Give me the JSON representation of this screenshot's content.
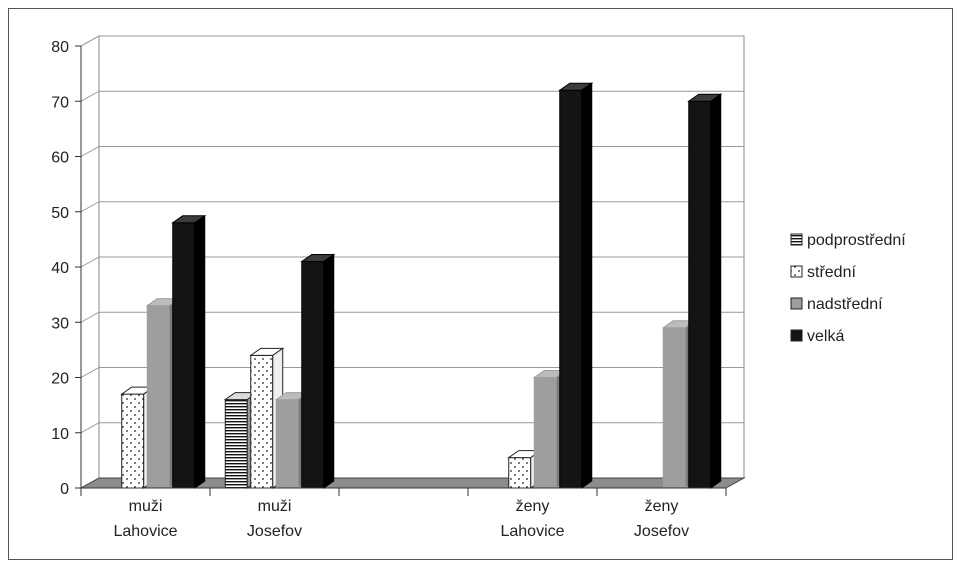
{
  "chart_data": {
    "type": "bar",
    "title": "",
    "xlabel": "",
    "ylabel": "",
    "ylim": [
      0,
      80
    ],
    "yticks": [
      0,
      10,
      20,
      30,
      40,
      50,
      60,
      70,
      80
    ],
    "grid": true,
    "legend_position": "right",
    "categories": [
      [
        "muži",
        "Lahovice"
      ],
      [
        "muži",
        "Josefov"
      ],
      [
        "",
        ""
      ],
      [
        "ženy",
        "Lahovice"
      ],
      [
        "ženy",
        "Josefov"
      ]
    ],
    "series": [
      {
        "name": "podprostřední",
        "values": [
          0,
          16,
          0,
          0,
          0
        ],
        "pattern": "horizontal-lines"
      },
      {
        "name": "střední",
        "values": [
          17,
          24,
          0,
          5.5,
          0
        ],
        "pattern": "dots"
      },
      {
        "name": "nadstřední",
        "values": [
          33,
          16,
          0,
          20,
          29
        ],
        "pattern": "gray"
      },
      {
        "name": "velká",
        "values": [
          48,
          41,
          0,
          72,
          70
        ],
        "pattern": "black"
      }
    ]
  }
}
